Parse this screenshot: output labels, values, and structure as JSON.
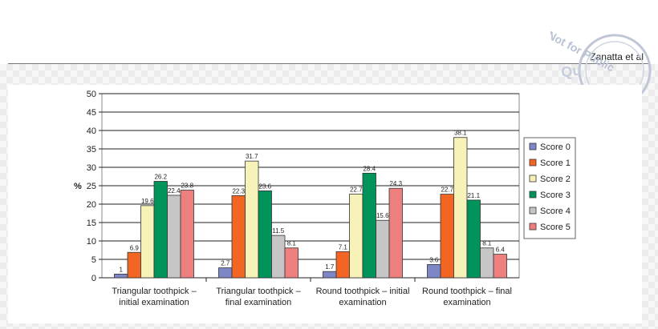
{
  "header": {
    "author": "Zanatta et al"
  },
  "watermark": {
    "text_line1": "Not for Public",
    "text_line2": "Qu"
  },
  "chart_data": {
    "type": "bar",
    "ylabel": "%",
    "xlabel": "",
    "title": "",
    "ylim": [
      0,
      50
    ],
    "yticks": [
      0,
      5,
      10,
      15,
      20,
      25,
      30,
      35,
      40,
      45,
      50
    ],
    "grid": "horizontal",
    "legend_position": "right",
    "categories": [
      [
        "Triangular toothpick –",
        "initial examination"
      ],
      [
        "Triangular toothpick –",
        "final examination"
      ],
      [
        "Round toothpick – initial",
        "examination"
      ],
      [
        "Round toothpick – final",
        "examination"
      ]
    ],
    "series": [
      {
        "name": "Score 0",
        "color": "#7d86c6",
        "values": [
          1,
          2.7,
          1.7,
          3.6
        ]
      },
      {
        "name": "Score 1",
        "color": "#f26522",
        "values": [
          6.9,
          22.3,
          7.1,
          22.7
        ]
      },
      {
        "name": "Score 2",
        "color": "#f7f3b8",
        "values": [
          19.6,
          31.7,
          22.7,
          38.1
        ]
      },
      {
        "name": "Score 3",
        "color": "#00935a",
        "values": [
          26.2,
          23.6,
          28.4,
          21.1
        ]
      },
      {
        "name": "Score 4",
        "color": "#c6c6c6",
        "values": [
          22.4,
          11.5,
          15.6,
          8.1
        ]
      },
      {
        "name": "Score 5",
        "color": "#ee7f7f",
        "values": [
          23.8,
          8.1,
          24.3,
          6.4
        ]
      }
    ]
  }
}
